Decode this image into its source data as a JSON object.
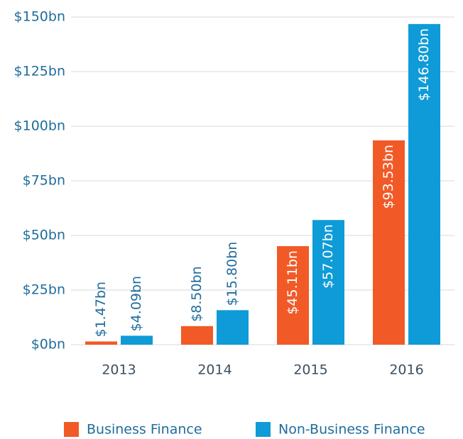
{
  "chart_data": {
    "type": "bar",
    "categories": [
      "2013",
      "2014",
      "2015",
      "2016"
    ],
    "series": [
      {
        "name": "Business Finance",
        "color": "#f15a27",
        "values": [
          1.47,
          8.5,
          45.11,
          93.53
        ],
        "value_labels": [
          "$1.47bn",
          "$8.50bn",
          "$45.11bn",
          "$93.53bn"
        ]
      },
      {
        "name": "Non-Business Finance",
        "color": "#0f9bd7",
        "values": [
          4.09,
          15.8,
          57.07,
          146.8
        ],
        "value_labels": [
          "$4.09bn",
          "$15.80bn",
          "$57.07bn",
          "$146.80bn"
        ]
      }
    ],
    "ylim": [
      0,
      150
    ],
    "yticks": [
      {
        "value": 0,
        "label": "$0bn"
      },
      {
        "value": 25,
        "label": "$25bn"
      },
      {
        "value": 50,
        "label": "$50bn"
      },
      {
        "value": 75,
        "label": "$75bn"
      },
      {
        "value": 100,
        "label": "$100bn"
      },
      {
        "value": 125,
        "label": "$125bn"
      },
      {
        "value": 150,
        "label": "$150bn"
      }
    ],
    "grid": true,
    "legend": "bottom"
  }
}
